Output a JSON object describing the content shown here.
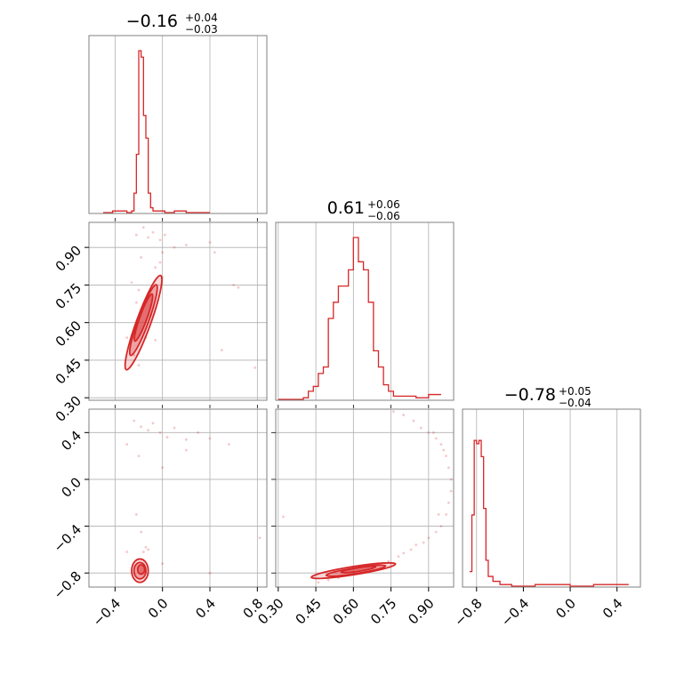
{
  "colors": {
    "accent": "#d62728",
    "grid": "#b0b0b0",
    "frame": "#808080"
  },
  "chart_data": {
    "type": "corner",
    "grid": true,
    "titles": [
      {
        "main": "−0.16",
        "sup": "+0.04",
        "sub": "−0.03"
      },
      {
        "main": "0.61",
        "sup": "+0.06",
        "sub": "−0.06"
      },
      {
        "main": "−0.78",
        "sup": "+0.05",
        "sub": "−0.04"
      }
    ],
    "params": [
      {
        "range": [
          -0.62,
          0.88
        ],
        "ticks": [
          -0.4,
          0.0,
          0.4,
          0.8
        ],
        "tick_labels": [
          "−0.4",
          "0.0",
          "0.4",
          "0.8"
        ]
      },
      {
        "range": [
          0.29,
          1.0
        ],
        "ticks": [
          0.3,
          0.45,
          0.6,
          0.75,
          0.9
        ],
        "tick_labels": [
          "0.30",
          "0.45",
          "0.60",
          "0.75",
          "0.90"
        ]
      },
      {
        "range": [
          -0.92,
          0.6
        ],
        "ticks": [
          -0.8,
          -0.4,
          0.0,
          0.4
        ],
        "tick_labels": [
          "−0.8",
          "−0.4",
          "0.0",
          "0.4"
        ]
      }
    ],
    "histograms": [
      {
        "param": 0,
        "x": [
          -0.5,
          -0.42,
          -0.3,
          -0.26,
          -0.24,
          -0.22,
          -0.2,
          -0.18,
          -0.16,
          -0.14,
          -0.12,
          -0.1,
          -0.08,
          -0.04,
          0.02,
          0.1,
          0.2,
          0.4
        ],
        "values": [
          0.0,
          0.01,
          0.0,
          0.01,
          0.12,
          0.36,
          1.0,
          0.96,
          0.6,
          0.46,
          0.12,
          0.03,
          0.01,
          0.01,
          0.0,
          0.01,
          0.0,
          0.0
        ]
      },
      {
        "param": 1,
        "x": [
          0.3,
          0.4,
          0.42,
          0.44,
          0.46,
          0.48,
          0.5,
          0.52,
          0.54,
          0.56,
          0.58,
          0.6,
          0.62,
          0.64,
          0.66,
          0.68,
          0.7,
          0.72,
          0.74,
          0.76,
          0.8,
          0.85,
          0.9,
          0.95
        ],
        "values": [
          0.0,
          0.01,
          0.05,
          0.08,
          0.16,
          0.2,
          0.5,
          0.6,
          0.7,
          0.7,
          0.8,
          1.0,
          0.85,
          0.8,
          0.6,
          0.3,
          0.2,
          0.09,
          0.05,
          0.02,
          0.02,
          0.01,
          0.03,
          0.02
        ]
      },
      {
        "param": 2,
        "x": [
          -0.86,
          -0.84,
          -0.82,
          -0.8,
          -0.78,
          -0.76,
          -0.74,
          -0.72,
          -0.7,
          -0.66,
          -0.6,
          -0.5,
          -0.3,
          0.0,
          0.2,
          0.3,
          0.4,
          0.5
        ],
        "values": [
          0.09,
          0.44,
          0.9,
          0.88,
          0.9,
          0.8,
          0.48,
          0.16,
          0.06,
          0.03,
          0.01,
          0.0,
          0.01,
          0.0,
          0.01,
          0.01,
          0.01,
          0.0
        ]
      }
    ],
    "scatter_panels": [
      {
        "x_param": 0,
        "y_param": 1,
        "contour_ellipses": [
          {
            "cx": -0.16,
            "cy": 0.6,
            "sx": 0.06,
            "sy": 0.2,
            "rot_deg": 20
          },
          {
            "cx": -0.16,
            "cy": 0.61,
            "sx": 0.045,
            "sy": 0.15,
            "rot_deg": 20
          },
          {
            "cx": -0.16,
            "cy": 0.62,
            "sx": 0.03,
            "sy": 0.1,
            "rot_deg": 20
          }
        ],
        "points": [
          [
            -0.22,
            0.95
          ],
          [
            -0.16,
            0.98
          ],
          [
            -0.12,
            0.94
          ],
          [
            -0.08,
            0.96
          ],
          [
            -0.02,
            0.93
          ],
          [
            0.02,
            0.95
          ],
          [
            0.1,
            0.9
          ],
          [
            0.2,
            0.91
          ],
          [
            0.4,
            0.92
          ],
          [
            0.44,
            0.88
          ],
          [
            0.6,
            0.75
          ],
          [
            0.64,
            0.74
          ],
          [
            0.78,
            0.42
          ],
          [
            0.5,
            0.49
          ],
          [
            -0.06,
            0.82
          ],
          [
            -0.02,
            0.84
          ],
          [
            -0.2,
            0.73
          ],
          [
            -0.22,
            0.68
          ],
          [
            -0.24,
            0.54
          ],
          [
            -0.24,
            0.47
          ],
          [
            -0.14,
            0.54
          ],
          [
            -0.1,
            0.63
          ],
          [
            -0.06,
            0.53
          ],
          [
            -0.26,
            0.76
          ],
          [
            -0.18,
            0.86
          ],
          [
            0.0,
            0.88
          ],
          [
            -0.3,
            0.54
          ],
          [
            -0.2,
            0.43
          ],
          [
            0.0,
            0.78
          ]
        ]
      },
      {
        "x_param": 0,
        "y_param": 2,
        "contour_ellipses": [
          {
            "cx": -0.19,
            "cy": -0.78,
            "sx": 0.07,
            "sy": 0.1,
            "rot_deg": 0
          },
          {
            "cx": -0.19,
            "cy": -0.78,
            "sx": 0.05,
            "sy": 0.07,
            "rot_deg": 0
          },
          {
            "cx": -0.18,
            "cy": -0.77,
            "sx": 0.03,
            "sy": 0.04,
            "rot_deg": 0
          }
        ],
        "points": [
          [
            -0.24,
            0.5
          ],
          [
            -0.18,
            0.45
          ],
          [
            -0.12,
            0.42
          ],
          [
            -0.08,
            0.48
          ],
          [
            -0.02,
            0.4
          ],
          [
            0.04,
            0.36
          ],
          [
            0.1,
            0.44
          ],
          [
            0.2,
            0.34
          ],
          [
            0.3,
            0.4
          ],
          [
            0.4,
            0.35
          ],
          [
            0.56,
            0.3
          ],
          [
            0.82,
            -0.5
          ],
          [
            -0.22,
            -0.3
          ],
          [
            -0.18,
            -0.45
          ],
          [
            -0.12,
            -0.6
          ],
          [
            -0.3,
            -0.62
          ],
          [
            0.0,
            -0.72
          ],
          [
            0.4,
            -0.8
          ],
          [
            -0.16,
            -0.62
          ],
          [
            -0.14,
            -0.58
          ],
          [
            -0.2,
            0.2
          ],
          [
            0.0,
            0.1
          ],
          [
            -0.3,
            0.3
          ],
          [
            0.2,
            0.25
          ]
        ]
      },
      {
        "x_param": 1,
        "y_param": 2,
        "contour_ellipses": [
          {
            "cx": 0.6,
            "cy": -0.78,
            "sx": 0.17,
            "sy": 0.035,
            "rot_deg": -9
          },
          {
            "cx": 0.61,
            "cy": -0.78,
            "sx": 0.12,
            "sy": 0.025,
            "rot_deg": -9
          },
          {
            "cx": 0.62,
            "cy": -0.77,
            "sx": 0.07,
            "sy": 0.015,
            "rot_deg": -9
          }
        ],
        "points": [
          [
            0.78,
            -0.66
          ],
          [
            0.8,
            -0.63
          ],
          [
            0.83,
            -0.6
          ],
          [
            0.85,
            -0.56
          ],
          [
            0.88,
            -0.54
          ],
          [
            0.9,
            -0.5
          ],
          [
            0.93,
            -0.45
          ],
          [
            0.95,
            -0.4
          ],
          [
            0.97,
            -0.3
          ],
          [
            0.98,
            -0.2
          ],
          [
            0.99,
            -0.1
          ],
          [
            0.99,
            0.0
          ],
          [
            0.98,
            0.1
          ],
          [
            0.97,
            0.2
          ],
          [
            0.95,
            0.3
          ],
          [
            0.93,
            0.35
          ],
          [
            0.9,
            0.4
          ],
          [
            0.87,
            0.44
          ],
          [
            0.84,
            0.5
          ],
          [
            0.8,
            0.55
          ],
          [
            0.76,
            0.58
          ],
          [
            0.94,
            -0.3
          ],
          [
            0.92,
            0.4
          ],
          [
            0.96,
            0.25
          ],
          [
            0.32,
            -0.32
          ],
          [
            0.46,
            -0.88
          ],
          [
            0.5,
            -0.86
          ],
          [
            0.54,
            -0.84
          ],
          [
            0.7,
            -0.72
          ],
          [
            0.74,
            -0.7
          ]
        ]
      }
    ]
  }
}
